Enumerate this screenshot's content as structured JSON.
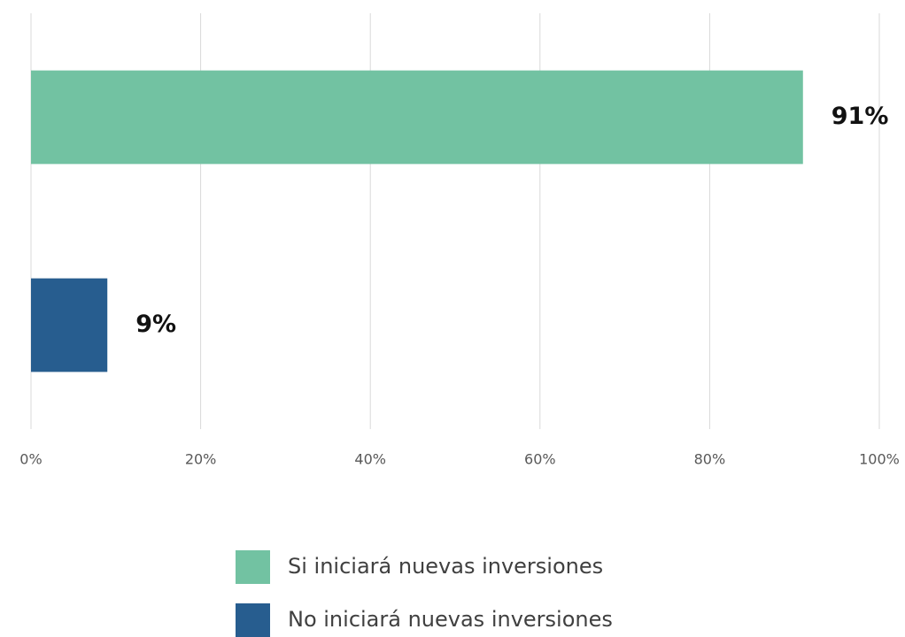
{
  "chart_data": {
    "type": "bar",
    "orientation": "horizontal",
    "categories": [
      null,
      null
    ],
    "series": [
      {
        "name": "Si iniciará nuevas inversiones",
        "color": "#72c2a2",
        "values": [
          91,
          null
        ],
        "value_labels": [
          "91%",
          null
        ]
      },
      {
        "name": "No iniciará nuevas inversiones",
        "color": "#275d8f",
        "values": [
          null,
          9
        ],
        "value_labels": [
          null,
          "9%"
        ]
      }
    ],
    "xlim": [
      0,
      100
    ],
    "xticks": [
      {
        "value": 0,
        "label": "0%"
      },
      {
        "value": 20,
        "label": "20%"
      },
      {
        "value": 40,
        "label": "40%"
      },
      {
        "value": 60,
        "label": "60%"
      },
      {
        "value": 80,
        "label": "80%"
      },
      {
        "value": 100,
        "label": "100%"
      }
    ],
    "grid": true,
    "legend": "bottom"
  }
}
